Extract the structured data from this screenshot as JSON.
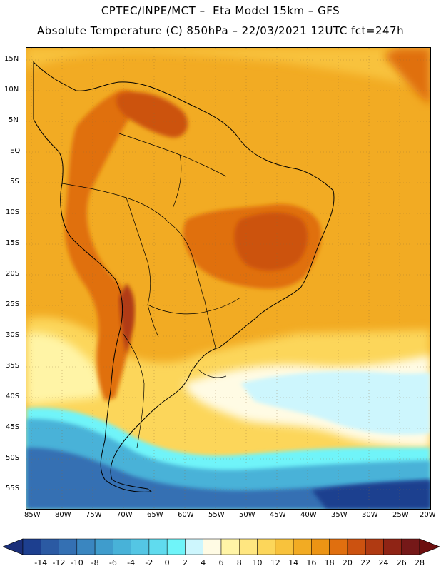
{
  "title": {
    "line1": "CPTEC/INPE/MCT –  Eta Model 15km – GFS",
    "line2": "Absolute Temperature (C) 850hPa – 22/03/2021 12UTC fct=247h"
  },
  "axes": {
    "lat_labels": [
      "15N",
      "10N",
      "5N",
      "EQ",
      "5S",
      "10S",
      "15S",
      "20S",
      "25S",
      "30S",
      "35S",
      "40S",
      "45S",
      "50S",
      "55S"
    ],
    "lon_labels": [
      "85W",
      "80W",
      "75W",
      "70W",
      "65W",
      "60W",
      "55W",
      "50W",
      "45W",
      "40W",
      "35W",
      "30W",
      "25W",
      "20W"
    ]
  },
  "colorbar": {
    "labels": [
      "-14",
      "-12",
      "-10",
      "-8",
      "-6",
      "-4",
      "-2",
      "0",
      "2",
      "4",
      "6",
      "8",
      "10",
      "12",
      "14",
      "16",
      "18",
      "20",
      "22",
      "24",
      "26",
      "28"
    ],
    "colors": [
      "#1d3f8f",
      "#2b5aa3",
      "#3470b3",
      "#3a86c0",
      "#3f9ccc",
      "#48b2d8",
      "#54c6e4",
      "#60dbee",
      "#6ff4f9",
      "#cdf6fd",
      "#fffbe4",
      "#fff4a6",
      "#ffe680",
      "#fcd65a",
      "#f8c23c",
      "#f2ab23",
      "#ec9414",
      "#e06f0f",
      "#cc5210",
      "#b03a12",
      "#8f2415",
      "#751818"
    ],
    "min_color": "#1b2f7a",
    "max_color": "#6d0f0f"
  }
}
